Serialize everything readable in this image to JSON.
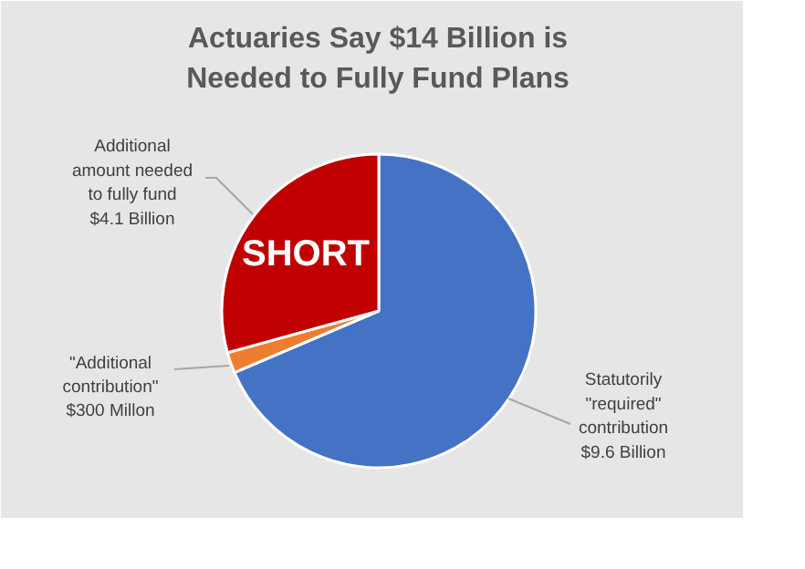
{
  "chart_data": {
    "type": "pie",
    "title": "Actuaries Say $14 Billion is\nNeeded to Fully Fund Plans",
    "categories": [
      "Statutorily\n\"required\"\ncontribution\n$9.6 Billion",
      "\"Additional\ncontribution\"\n$300 Millon",
      "Additional\namount needed\nto fully fund\n$4.1 Billion"
    ],
    "values": [
      9.6,
      0.3,
      4.1
    ],
    "colors": [
      "#4472c4",
      "#ed7d31",
      "#c00000"
    ],
    "annotations": [
      "SHORT"
    ]
  }
}
